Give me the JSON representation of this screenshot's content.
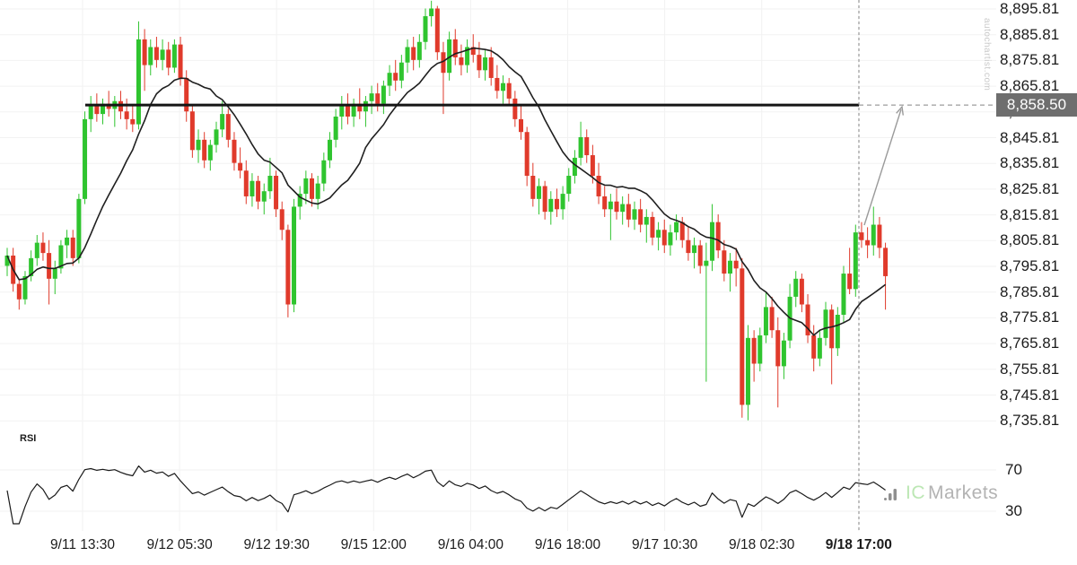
{
  "colors": {
    "up": "#2fc42f",
    "down": "#e03a2b",
    "ma_line": "#1f1f1f",
    "rsi_line": "#1a1a1a",
    "resistance": "#151515",
    "grid": "#f2f2f2",
    "dashed": "#858585",
    "arrow": "#9a9a9a",
    "label_box_bg": "#6e6e6e",
    "label_box_text": "#ffffff",
    "axis_text": "#1c1c1c"
  },
  "branding": {
    "watermark": "autochartist.com",
    "logo_ic": "IC",
    "logo_markets": "Markets"
  },
  "chart_data": {
    "type": "candlestick",
    "ma_period": 13,
    "grid": true,
    "y_axis": {
      "side": "right",
      "ylim": [
        8730,
        8900
      ],
      "ticks": [
        {
          "label": "8,895.81",
          "value": 8895.81
        },
        {
          "label": "8,885.81",
          "value": 8885.81
        },
        {
          "label": "8,875.81",
          "value": 8875.81
        },
        {
          "label": "8,865.81",
          "value": 8865.81
        },
        {
          "label": "8,855.81",
          "value": 8855.81
        },
        {
          "label": "8,845.81",
          "value": 8845.81
        },
        {
          "label": "8,835.81",
          "value": 8835.81
        },
        {
          "label": "8,825.81",
          "value": 8825.81
        },
        {
          "label": "8,815.81",
          "value": 8815.81
        },
        {
          "label": "8,805.81",
          "value": 8805.81
        },
        {
          "label": "8,795.81",
          "value": 8795.81
        },
        {
          "label": "8,785.81",
          "value": 8785.81
        },
        {
          "label": "8,775.81",
          "value": 8775.81
        },
        {
          "label": "8,765.81",
          "value": 8765.81
        },
        {
          "label": "8,755.81",
          "value": 8755.81
        },
        {
          "label": "8,745.81",
          "value": 8745.81
        },
        {
          "label": "8,735.81",
          "value": 8735.81
        }
      ]
    },
    "x_axis": {
      "ticks": [
        {
          "label": "9/11 13:30",
          "bold": false
        },
        {
          "label": "9/12 05:30",
          "bold": false
        },
        {
          "label": "9/12 19:30",
          "bold": false
        },
        {
          "label": "9/15 12:00",
          "bold": false
        },
        {
          "label": "9/16 04:00",
          "bold": false
        },
        {
          "label": "9/16 18:00",
          "bold": false
        },
        {
          "label": "9/17 10:30",
          "bold": false
        },
        {
          "label": "9/18 02:30",
          "bold": false
        },
        {
          "label": "9/18 17:00",
          "bold": true
        }
      ],
      "current_time_marker": "9/18 17:00"
    },
    "resistance": {
      "value": 8858.5,
      "label": "8,858.50"
    },
    "rsi": {
      "title": "RSI",
      "period": 14,
      "levels": [
        {
          "label": "70",
          "value": 70
        },
        {
          "label": "30",
          "value": 30
        }
      ]
    },
    "candles_ohlc": [
      [
        8796,
        8803,
        8792,
        8800
      ],
      [
        8800,
        8803,
        8786,
        8789
      ],
      [
        8789,
        8791,
        8779,
        8783
      ],
      [
        8783,
        8794,
        8781,
        8792
      ],
      [
        8792,
        8802,
        8790,
        8799
      ],
      [
        8799,
        8808,
        8796,
        8805
      ],
      [
        8805,
        8809,
        8798,
        8801
      ],
      [
        8801,
        8806,
        8781,
        8791
      ],
      [
        8791,
        8798,
        8785,
        8795
      ],
      [
        8795,
        8806,
        8793,
        8804
      ],
      [
        8804,
        8810,
        8799,
        8807
      ],
      [
        8807,
        8810,
        8796,
        8799
      ],
      [
        8799,
        8824,
        8797,
        8822
      ],
      [
        8822,
        8856,
        8820,
        8853
      ],
      [
        8853,
        8862,
        8848,
        8858
      ],
      [
        8858,
        8863,
        8852,
        8855
      ],
      [
        8855,
        8861,
        8851,
        8859
      ],
      [
        8859,
        8864,
        8854,
        8857
      ],
      [
        8857,
        8862,
        8850,
        8860
      ],
      [
        8860,
        8864,
        8853,
        8856
      ],
      [
        8856,
        8861,
        8849,
        8853
      ],
      [
        8853,
        8858,
        8848,
        8851
      ],
      [
        8851,
        8891,
        8849,
        8884
      ],
      [
        8884,
        8888,
        8864,
        8874
      ],
      [
        8874,
        8884,
        8870,
        8881
      ],
      [
        8881,
        8885,
        8873,
        8876
      ],
      [
        8876,
        8884,
        8872,
        8880
      ],
      [
        8880,
        8883,
        8870,
        8873
      ],
      [
        8873,
        8884,
        8871,
        8882
      ],
      [
        8882,
        8885,
        8866,
        8869
      ],
      [
        8869,
        8872,
        8852,
        8856
      ],
      [
        8856,
        8858,
        8838,
        8841
      ],
      [
        8841,
        8849,
        8836,
        8845
      ],
      [
        8845,
        8848,
        8834,
        8837
      ],
      [
        8837,
        8845,
        8833,
        8843
      ],
      [
        8843,
        8852,
        8840,
        8849
      ],
      [
        8849,
        8860,
        8846,
        8855
      ],
      [
        8855,
        8857,
        8842,
        8845
      ],
      [
        8845,
        8848,
        8833,
        8836
      ],
      [
        8836,
        8842,
        8830,
        8833
      ],
      [
        8833,
        8837,
        8820,
        8823
      ],
      [
        8823,
        8832,
        8819,
        8829
      ],
      [
        8829,
        8831,
        8818,
        8821
      ],
      [
        8821,
        8828,
        8816,
        8825
      ],
      [
        8825,
        8838,
        8822,
        8831
      ],
      [
        8831,
        8833,
        8815,
        8818
      ],
      [
        8818,
        8821,
        8806,
        8810
      ],
      [
        8810,
        8812,
        8776,
        8781
      ],
      [
        8781,
        8822,
        8778,
        8819
      ],
      [
        8819,
        8827,
        8814,
        8824
      ],
      [
        8824,
        8833,
        8820,
        8830
      ],
      [
        8830,
        8832,
        8819,
        8822
      ],
      [
        8822,
        8831,
        8818,
        8828
      ],
      [
        8828,
        8840,
        8825,
        8837
      ],
      [
        8837,
        8848,
        8834,
        8845
      ],
      [
        8845,
        8857,
        8842,
        8854
      ],
      [
        8854,
        8862,
        8849,
        8858
      ],
      [
        8858,
        8863,
        8851,
        8854
      ],
      [
        8854,
        8861,
        8850,
        8859
      ],
      [
        8859,
        8865,
        8853,
        8856
      ],
      [
        8856,
        8862,
        8850,
        8860
      ],
      [
        8860,
        8866,
        8855,
        8863
      ],
      [
        8863,
        8867,
        8856,
        8859
      ],
      [
        8859,
        8868,
        8855,
        8866
      ],
      [
        8866,
        8874,
        8862,
        8871
      ],
      [
        8871,
        8876,
        8864,
        8868
      ],
      [
        8868,
        8878,
        8865,
        8875
      ],
      [
        8875,
        8884,
        8871,
        8881
      ],
      [
        8881,
        8885,
        8872,
        8876
      ],
      [
        8876,
        8886,
        8873,
        8883
      ],
      [
        8883,
        8896,
        8880,
        8893
      ],
      [
        8893,
        8899,
        8889,
        8896
      ],
      [
        8896,
        8897,
        8876,
        8879
      ],
      [
        8879,
        8883,
        8855,
        8871
      ],
      [
        8871,
        8887,
        8868,
        8884
      ],
      [
        8884,
        8888,
        8874,
        8877
      ],
      [
        8877,
        8882,
        8870,
        8874
      ],
      [
        8874,
        8884,
        8871,
        8881
      ],
      [
        8881,
        8886,
        8875,
        8878
      ],
      [
        8878,
        8883,
        8869,
        8872
      ],
      [
        8872,
        8880,
        8868,
        8877
      ],
      [
        8877,
        8881,
        8866,
        8869
      ],
      [
        8869,
        8874,
        8861,
        8864
      ],
      [
        8864,
        8870,
        8859,
        8867
      ],
      [
        8867,
        8869,
        8858,
        8861
      ],
      [
        8861,
        8864,
        8850,
        8853
      ],
      [
        8853,
        8858,
        8845,
        8848
      ],
      [
        8848,
        8850,
        8827,
        8831
      ],
      [
        8831,
        8836,
        8819,
        8822
      ],
      [
        8822,
        8830,
        8816,
        8827
      ],
      [
        8827,
        8829,
        8814,
        8817
      ],
      [
        8817,
        8825,
        8812,
        8822
      ],
      [
        8822,
        8826,
        8815,
        8818
      ],
      [
        8818,
        8827,
        8814,
        8824
      ],
      [
        8824,
        8834,
        8821,
        8831
      ],
      [
        8831,
        8841,
        8828,
        8838
      ],
      [
        8838,
        8852,
        8835,
        8846
      ],
      [
        8846,
        8849,
        8836,
        8839
      ],
      [
        8839,
        8843,
        8828,
        8831
      ],
      [
        8831,
        8836,
        8820,
        8823
      ],
      [
        8823,
        8827,
        8815,
        8818
      ],
      [
        8818,
        8824,
        8806,
        8821
      ],
      [
        8821,
        8826,
        8814,
        8817
      ],
      [
        8817,
        8823,
        8812,
        8820
      ],
      [
        8820,
        8824,
        8811,
        8814
      ],
      [
        8814,
        8821,
        8810,
        8818
      ],
      [
        8818,
        8822,
        8809,
        8812
      ],
      [
        8812,
        8818,
        8805,
        8815
      ],
      [
        8815,
        8817,
        8804,
        8807
      ],
      [
        8807,
        8813,
        8802,
        8810
      ],
      [
        8810,
        8814,
        8801,
        8804
      ],
      [
        8804,
        8812,
        8800,
        8809
      ],
      [
        8809,
        8816,
        8806,
        8813
      ],
      [
        8813,
        8815,
        8803,
        8806
      ],
      [
        8806,
        8811,
        8798,
        8801
      ],
      [
        8801,
        8807,
        8795,
        8804
      ],
      [
        8804,
        8806,
        8793,
        8796
      ],
      [
        8796,
        8805,
        8751,
        8798
      ],
      [
        8798,
        8820,
        8794,
        8813
      ],
      [
        8813,
        8816,
        8799,
        8802
      ],
      [
        8802,
        8806,
        8790,
        8793
      ],
      [
        8793,
        8801,
        8786,
        8798
      ],
      [
        8798,
        8803,
        8788,
        8795
      ],
      [
        8795,
        8799,
        8737,
        8742
      ],
      [
        8742,
        8773,
        8736,
        8768
      ],
      [
        8768,
        8771,
        8751,
        8758
      ],
      [
        8758,
        8772,
        8755,
        8769
      ],
      [
        8769,
        8786,
        8766,
        8780
      ],
      [
        8780,
        8784,
        8768,
        8771
      ],
      [
        8771,
        8776,
        8741,
        8757
      ],
      [
        8757,
        8770,
        8752,
        8767
      ],
      [
        8767,
        8789,
        8764,
        8784
      ],
      [
        8784,
        8794,
        8780,
        8791
      ],
      [
        8791,
        8793,
        8778,
        8781
      ],
      [
        8781,
        8785,
        8766,
        8769
      ],
      [
        8769,
        8773,
        8755,
        8760
      ],
      [
        8760,
        8771,
        8757,
        8768
      ],
      [
        8768,
        8782,
        8765,
        8779
      ],
      [
        8779,
        8781,
        8750,
        8764
      ],
      [
        8764,
        8780,
        8761,
        8777
      ],
      [
        8777,
        8796,
        8774,
        8793
      ],
      [
        8793,
        8803,
        8785,
        8787
      ],
      [
        8787,
        8812,
        8784,
        8809
      ],
      [
        8809,
        8813,
        8803,
        8806
      ],
      [
        8806,
        8811,
        8799,
        8804
      ],
      [
        8804,
        8819,
        8800,
        8812
      ],
      [
        8812,
        8815,
        8799,
        8803
      ],
      [
        8803,
        8805,
        8779,
        8792
      ]
    ]
  }
}
